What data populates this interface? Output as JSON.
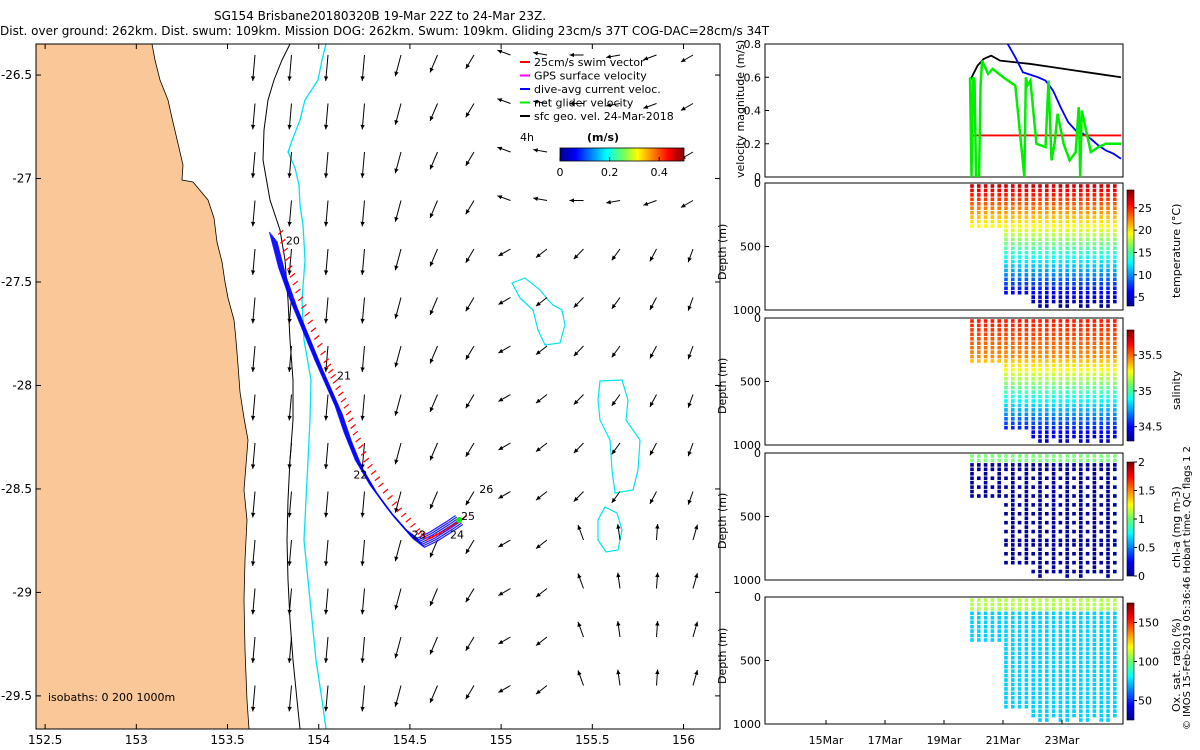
{
  "title": {
    "line1": "SG154 Brisbane20180320B 19-Mar 22Z to 24-Mar 23Z.",
    "line2": "Dist. over ground: 262km. Dist. swum: 109km. Mission DOG: 262km. Swum: 109km. Gliding 23cm/s 37T COG-DAC=28cm/s 34T"
  },
  "map": {
    "lon_ticks": [
      "152.5",
      "153",
      "153.5",
      "154",
      "154.5",
      "155",
      "155.5",
      "156"
    ],
    "lat_ticks": [
      "-26.5",
      "-27",
      "-27.5",
      "-28",
      "-28.5",
      "-29",
      "-29.5"
    ],
    "lon_range": [
      152.45,
      156.2
    ],
    "lat_range": [
      -29.66,
      -26.35
    ],
    "isobaths_label": "isobaths: 0   200  1000m",
    "legend": [
      {
        "label": "25cm/s swim vector",
        "color": "#ff0000"
      },
      {
        "label": "GPS surface velocity",
        "color": "#ff00ff"
      },
      {
        "label": "dive-avg current veloc.",
        "color": "#0000ff"
      },
      {
        "label": "net glider velocity",
        "color": "#00ee00"
      },
      {
        "label": "sfc geo. vel. 24-Mar-2018",
        "color": "#000000"
      }
    ],
    "scale_label": "4h",
    "colorbar": {
      "title": "(m/s)",
      "ticks": [
        "0",
        "0.2",
        "0.4"
      ],
      "range": [
        0,
        0.5
      ]
    },
    "day_labels": [
      {
        "text": "20",
        "lon": 153.82,
        "lat": -27.32
      },
      {
        "text": "21",
        "lon": 154.1,
        "lat": -27.97
      },
      {
        "text": "22",
        "lon": 154.19,
        "lat": -28.45
      },
      {
        "text": "23",
        "lon": 154.51,
        "lat": -28.74
      },
      {
        "text": "24",
        "lon": 154.72,
        "lat": -28.74
      },
      {
        "text": "25",
        "lon": 154.78,
        "lat": -28.65
      },
      {
        "text": "26",
        "lon": 154.88,
        "lat": -28.52
      }
    ],
    "track": [
      [
        153.75,
        -27.28
      ],
      [
        153.8,
        -27.45
      ],
      [
        153.86,
        -27.6
      ],
      [
        153.93,
        -27.75
      ],
      [
        154.0,
        -27.9
      ],
      [
        154.05,
        -28.0
      ],
      [
        154.11,
        -28.12
      ],
      [
        154.16,
        -28.25
      ],
      [
        154.22,
        -28.38
      ],
      [
        154.3,
        -28.5
      ],
      [
        154.4,
        -28.62
      ],
      [
        154.5,
        -28.72
      ],
      [
        154.56,
        -28.76
      ],
      [
        154.63,
        -28.73
      ],
      [
        154.72,
        -28.68
      ],
      [
        154.77,
        -28.65
      ]
    ]
  },
  "velocity_panel": {
    "ylabel": "velocity magnitude (m/s)",
    "y_ticks": [
      "0",
      "0.2",
      "0.4",
      "0.6",
      "0.8"
    ],
    "ylim": [
      0,
      0.8
    ],
    "series": [
      {
        "name": "sfc geo",
        "color": "#000000",
        "x": [
          0,
          0.05,
          0.09,
          0.14,
          0.2,
          0.3,
          0.4,
          0.55,
          0.7,
          0.85,
          1.0
        ],
        "values": [
          0.58,
          0.67,
          0.71,
          0.73,
          0.7,
          0.69,
          0.68,
          0.66,
          0.64,
          0.62,
          0.6
        ]
      },
      {
        "name": "dive-avg current",
        "color": "#0000ff",
        "x": [
          0.25,
          0.3,
          0.35,
          0.45,
          0.5,
          0.55,
          0.6,
          0.65,
          0.7,
          0.75,
          0.8,
          0.85,
          0.9,
          0.95,
          1.0
        ],
        "values": [
          0.8,
          0.72,
          0.63,
          0.6,
          0.58,
          0.52,
          0.42,
          0.33,
          0.28,
          0.26,
          0.23,
          0.19,
          0.16,
          0.14,
          0.11
        ]
      },
      {
        "name": "swim",
        "color": "#ff0000",
        "x": [
          0,
          1.0
        ],
        "values": [
          0.25,
          0.25
        ]
      },
      {
        "name": "net glider",
        "color": "#00ee00",
        "x": [
          0,
          0.01,
          0.02,
          0.03,
          0.04,
          0.06,
          0.07,
          0.08,
          0.12,
          0.15,
          0.22,
          0.3,
          0.36,
          0.37,
          0.38,
          0.4,
          0.44,
          0.5,
          0.52,
          0.54,
          0.56,
          0.58,
          0.62,
          0.66,
          0.7,
          0.72,
          0.73,
          0.74,
          0.8,
          0.85,
          0.9,
          1.0
        ],
        "values": [
          0.6,
          0.0,
          0.6,
          0.58,
          0.0,
          0.0,
          0.55,
          0.7,
          0.62,
          0.65,
          0.6,
          0.55,
          0.0,
          0.6,
          0.55,
          0.58,
          0.2,
          0.18,
          0.58,
          0.1,
          0.2,
          0.38,
          0.2,
          0.1,
          0.15,
          0.42,
          0.0,
          0.4,
          0.15,
          0.18,
          0.2,
          0.2
        ]
      }
    ]
  },
  "time_axis": {
    "ticks": [
      "15Mar",
      "17Mar",
      "19Mar",
      "21Mar",
      "23Mar"
    ]
  },
  "profile_panels": [
    {
      "id": "temperature",
      "ylabel": "Depth (m)",
      "y_ticks": [
        "0",
        "500",
        "1000"
      ],
      "cbar_label": "temperature (°C)",
      "cbar_ticks": [
        "5",
        "10",
        "15",
        "20",
        "25"
      ],
      "cbar_range": [
        3,
        29
      ],
      "colormap": "jet"
    },
    {
      "id": "salinity",
      "ylabel": "Depth (m)",
      "y_ticks": [
        "0",
        "500",
        "1000"
      ],
      "cbar_label": "salinity",
      "cbar_ticks": [
        "34.5",
        "35",
        "35.5"
      ],
      "cbar_range": [
        34.3,
        35.85
      ],
      "colormap": "jet"
    },
    {
      "id": "chla",
      "ylabel": "Depth (m)",
      "y_ticks": [
        "0",
        "500",
        "1000"
      ],
      "cbar_label": "chl-a (mg m-3)",
      "cbar_ticks": [
        "0",
        "0.5",
        "1",
        "1.5",
        "2"
      ],
      "cbar_range": [
        0,
        2
      ],
      "colormap": "jet"
    },
    {
      "id": "oxygen",
      "ylabel": "Depth (m)",
      "y_ticks": [
        "0",
        "500",
        "1000"
      ],
      "cbar_label": "Ox. sat. ratio (%)",
      "cbar_ticks": [
        "50",
        "100",
        "150"
      ],
      "cbar_range": [
        25,
        175
      ],
      "colormap": "jet"
    }
  ],
  "footer": {
    "credit": "© IMOS 15-Feb-2019 05:36:46 Hobart time. QC flags 1  2"
  },
  "colors": {
    "land": "#fac898",
    "ocean": "#ffffff",
    "isobath200": "#00e5ee",
    "isobath1000": "#000000"
  }
}
